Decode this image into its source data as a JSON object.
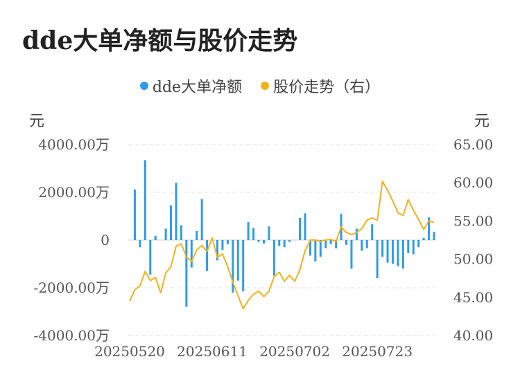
{
  "chart_data": {
    "type": "bar+line",
    "title": "dde大单净额与股价走势",
    "legend": [
      {
        "name": "dde大单净额",
        "color": "#2f9be9"
      },
      {
        "name": "股价走势（右）",
        "color": "#f3b21b"
      }
    ],
    "left_unit": "元",
    "right_unit": "元",
    "left_ticks": [
      "4000.00万",
      "2000.00万",
      "0",
      "-2000.00万",
      "-4000.00万"
    ],
    "right_ticks": [
      "65.00",
      "60.00",
      "55.00",
      "50.00",
      "45.00",
      "40.00"
    ],
    "left_range": [
      -4000,
      4000
    ],
    "right_range": [
      40,
      65
    ],
    "x_labels": [
      {
        "label": "20250520",
        "index": 0
      },
      {
        "label": "20250611",
        "index": 16
      },
      {
        "label": "20250702",
        "index": 32
      },
      {
        "label": "20250723",
        "index": 48
      }
    ],
    "bar_values": [
      0,
      2120,
      -300,
      3350,
      -1450,
      180,
      0,
      480,
      1450,
      2400,
      620,
      -2800,
      -1150,
      380,
      1720,
      -1300,
      0,
      -850,
      -420,
      -180,
      -2200,
      -1700,
      -2150,
      750,
      500,
      -80,
      -150,
      570,
      -1500,
      -250,
      -300,
      -80,
      0,
      930,
      1120,
      -650,
      -900,
      -700,
      -350,
      -170,
      -350,
      1100,
      -200,
      -1200,
      480,
      -450,
      -350,
      660,
      -1600,
      -700,
      -950,
      -1000,
      -1100,
      -1200,
      -550,
      -600,
      -300,
      90,
      950,
      350
    ],
    "line_values": [
      44.5,
      46.0,
      46.5,
      48.4,
      47.2,
      47.6,
      45.6,
      48.2,
      49.0,
      51.7,
      52.0,
      50.3,
      49.7,
      51.2,
      51.8,
      51.0,
      52.8,
      50.2,
      50.7,
      49.0,
      47.0,
      45.2,
      43.5,
      44.6,
      45.4,
      45.8,
      45.1,
      45.8,
      47.7,
      48.3,
      47.1,
      47.9,
      47.1,
      48.6,
      51.1,
      52.5,
      52.5,
      52.3,
      52.5,
      52.6,
      52.3,
      54.2,
      53.5,
      53.2,
      53.5,
      54.0,
      55.1,
      55.4,
      55.1,
      60.2,
      59.0,
      57.6,
      56.1,
      55.7,
      57.8,
      56.4,
      55.2,
      53.9,
      55.0,
      54.8
    ]
  }
}
